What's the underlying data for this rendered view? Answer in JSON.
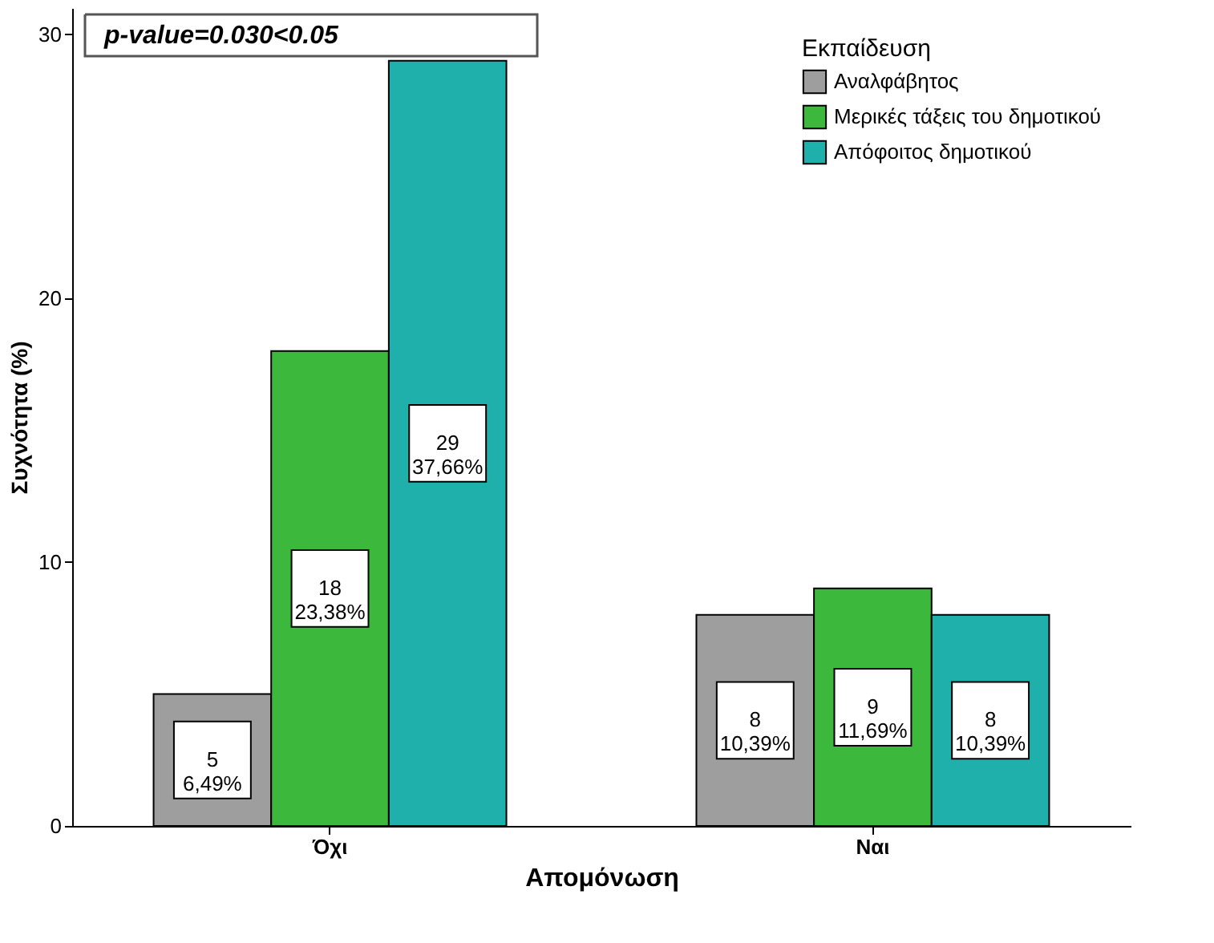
{
  "chart_data": {
    "type": "bar",
    "xlabel": "Απομόνωση",
    "ylabel": "Συχνότητα (%)",
    "legend_title": "Εκπαίδευση",
    "categories": [
      "Όχι",
      "Ναι"
    ],
    "series": [
      {
        "name": "Αναλφάβητος",
        "color": "#9e9e9e",
        "values": [
          5,
          8
        ],
        "value_labels": [
          "5\n6,49%",
          "8\n10,39%"
        ]
      },
      {
        "name": "Μερικές τάξεις του δημοτικού",
        "color": "#3cb83c",
        "values": [
          18,
          9
        ],
        "value_labels": [
          "18\n23,38%",
          "9\n11,69%"
        ]
      },
      {
        "name": "Απόφοιτος δημοτικού",
        "color": "#1fb0ac",
        "values": [
          29,
          8
        ],
        "value_labels": [
          "29\n37,66%",
          "8\n10,39%"
        ]
      }
    ],
    "ylim": [
      0,
      31
    ],
    "yticks": [
      0,
      10,
      20,
      30
    ],
    "grid": false,
    "legend": "top right",
    "annotations": [
      "p-value=0.030<0.05"
    ]
  }
}
